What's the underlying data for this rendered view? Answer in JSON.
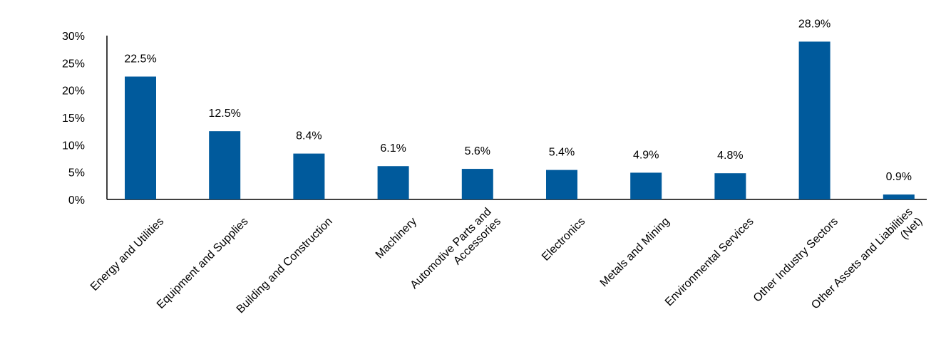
{
  "chart_data": {
    "type": "bar",
    "categories": [
      [
        "Energy and Utilities"
      ],
      [
        "Equipment and Supplies"
      ],
      [
        "Building and Construction"
      ],
      [
        "Machinery"
      ],
      [
        "Automotive Parts and",
        "Accessories"
      ],
      [
        "Electronics"
      ],
      [
        "Metals and Mining"
      ],
      [
        "Environmental Services"
      ],
      [
        "Other Industry Sectors"
      ],
      [
        "Other Assets and Liabilities",
        "(Net)"
      ]
    ],
    "values": [
      22.5,
      12.5,
      8.4,
      6.1,
      5.6,
      5.4,
      4.9,
      4.8,
      28.9,
      0.9
    ],
    "data_labels": [
      "22.5%",
      "12.5%",
      "8.4%",
      "6.1%",
      "5.6%",
      "5.4%",
      "4.9%",
      "4.8%",
      "28.9%",
      "0.9%"
    ],
    "y_ticks": [
      0,
      5,
      10,
      15,
      20,
      25,
      30
    ],
    "y_tick_labels": [
      "0%",
      "5%",
      "10%",
      "15%",
      "20%",
      "25%",
      "30%"
    ],
    "ylim": [
      0,
      30
    ],
    "grid": false,
    "legend": "none",
    "bar_color": "#005a9c"
  }
}
